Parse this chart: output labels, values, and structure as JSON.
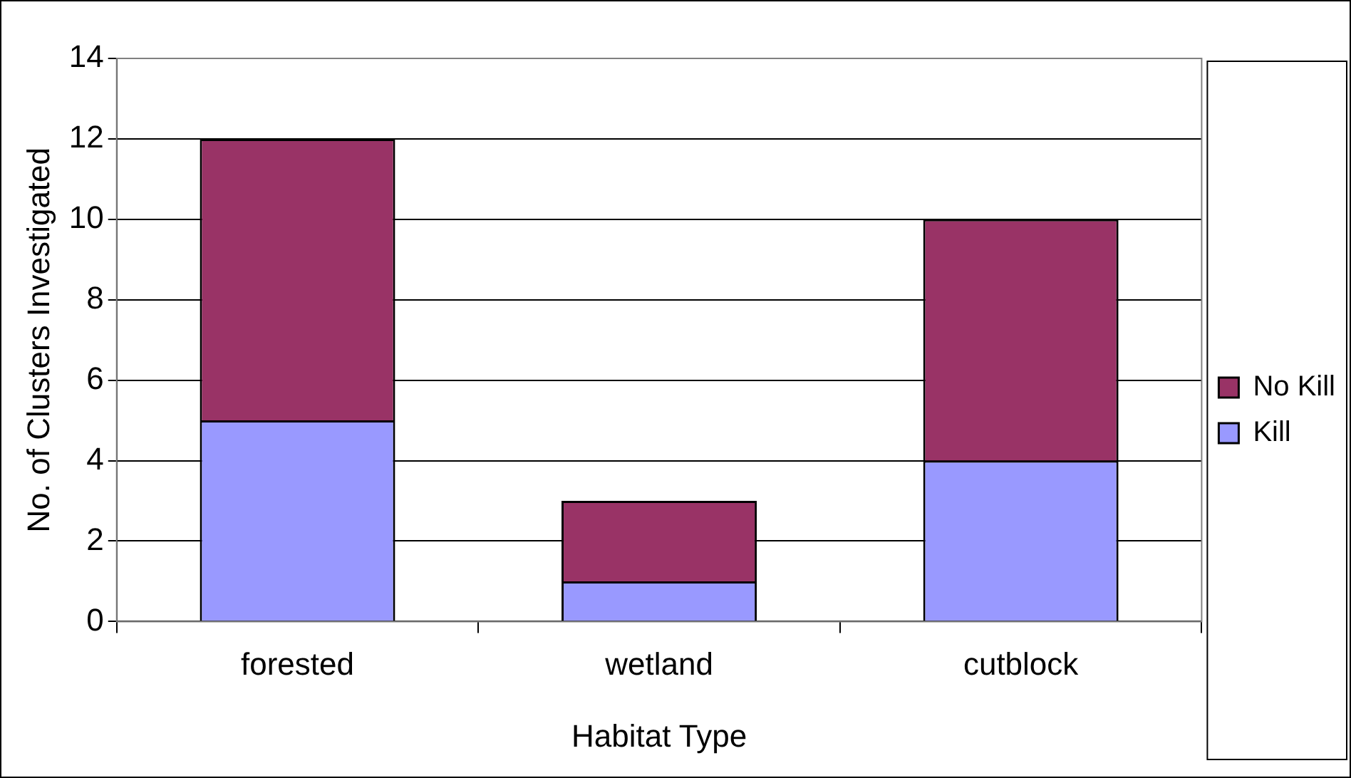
{
  "chart_data": {
    "type": "bar",
    "stacked": true,
    "xlabel": "Habitat Type",
    "ylabel": "No. of Clusters Investigated",
    "categories": [
      "forested",
      "wetland",
      "cutblock"
    ],
    "series": [
      {
        "name": "Kill",
        "color": "#9999ff",
        "values": [
          5,
          1,
          4
        ]
      },
      {
        "name": "No Kill",
        "color": "#993366",
        "values": [
          7,
          2,
          6
        ]
      }
    ],
    "ylim": [
      0,
      14
    ],
    "yticks": [
      0,
      2,
      4,
      6,
      8,
      10,
      12,
      14
    ],
    "grid": "y",
    "legend": "right"
  }
}
